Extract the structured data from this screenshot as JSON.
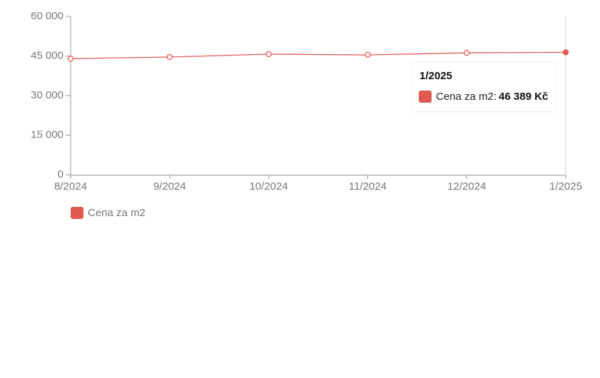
{
  "chart_data": {
    "type": "line",
    "categories": [
      "8/2024",
      "9/2024",
      "10/2024",
      "11/2024",
      "12/2024",
      "1/2025"
    ],
    "series": [
      {
        "name": "Cena za m2",
        "color": "#e05a52",
        "values": [
          44000,
          44600,
          45700,
          45400,
          46200,
          46389
        ],
        "value_labels": [
          null,
          null,
          null,
          null,
          null,
          "46 389 Kč"
        ]
      }
    ],
    "ylim": [
      0,
      60000
    ],
    "yticks": [
      0,
      {
        "value": 15000,
        "label": "15 000"
      },
      {
        "value": 30000,
        "label": "30 000"
      },
      {
        "value": 45000,
        "label": "45 000"
      },
      {
        "value": 60000,
        "label": "60 000"
      }
    ],
    "grid": false,
    "legend": "bottom-left",
    "tooltip": {
      "title": "1/2025",
      "label": "Cena za m2:"
    }
  }
}
